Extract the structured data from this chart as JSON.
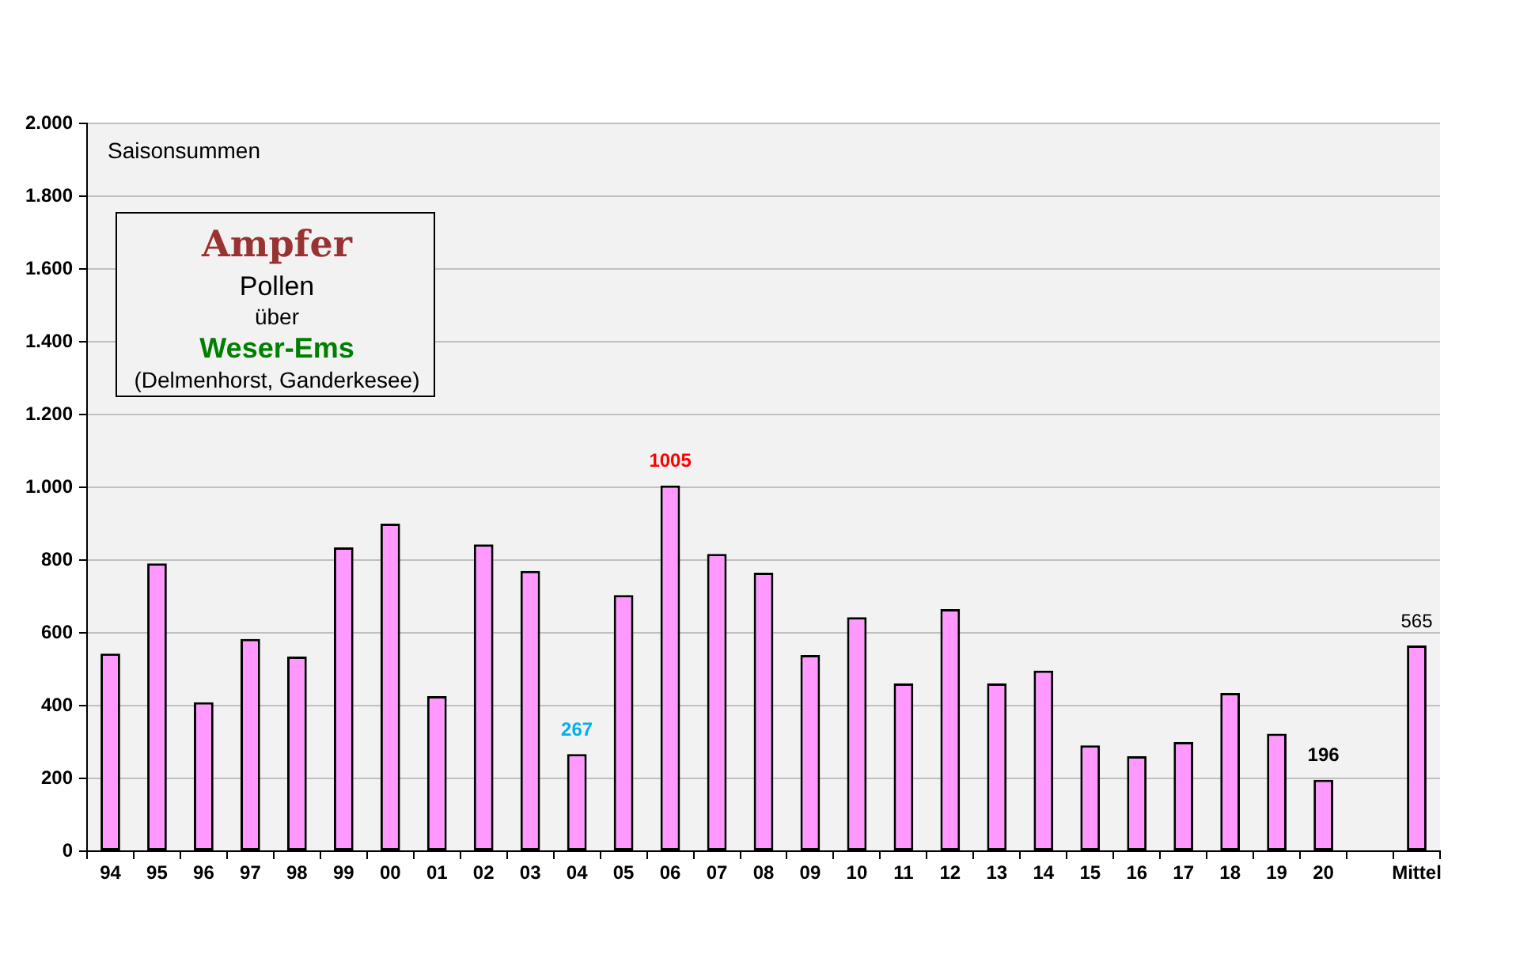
{
  "chart_data": {
    "type": "bar",
    "categories": [
      "94",
      "95",
      "96",
      "97",
      "98",
      "99",
      "00",
      "01",
      "02",
      "03",
      "04",
      "05",
      "06",
      "07",
      "08",
      "09",
      "10",
      "11",
      "12",
      "13",
      "14",
      "15",
      "16",
      "17",
      "18",
      "19",
      "20",
      null,
      "Mittel"
    ],
    "values": [
      543,
      791,
      409,
      583,
      535,
      835,
      900,
      426,
      843,
      770,
      267,
      704,
      1005,
      817,
      765,
      539,
      643,
      461,
      665,
      461,
      496,
      291,
      261,
      300,
      435,
      323,
      196,
      null,
      565
    ],
    "value_labels": [
      null,
      null,
      null,
      null,
      null,
      null,
      null,
      null,
      null,
      null,
      "267",
      null,
      "1005",
      null,
      null,
      null,
      null,
      null,
      null,
      null,
      null,
      null,
      null,
      null,
      null,
      null,
      "196",
      null,
      "565"
    ],
    "color": "#ff99ff",
    "ylim": [
      0,
      2000
    ],
    "yticks": [
      0,
      200,
      400,
      600,
      800,
      {
        "value": 1000,
        "label": "1.000"
      },
      {
        "value": 1200,
        "label": "1.200"
      },
      {
        "value": 1400,
        "label": "1.400"
      },
      {
        "value": 1600,
        "label": "1.600"
      },
      {
        "value": 1800,
        "label": "1.800"
      },
      {
        "value": 2000,
        "label": "2.000"
      }
    ],
    "grid": "y",
    "legend": false,
    "annotations": [
      "Saisonsummen",
      "Ampfer",
      "Pollen",
      "über",
      "Weser-Ems",
      "(Delmenhorst, Ganderkesee)"
    ]
  }
}
